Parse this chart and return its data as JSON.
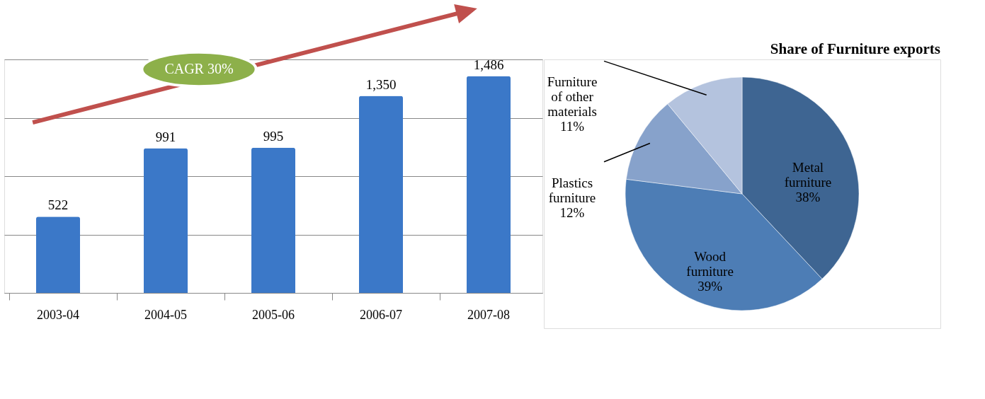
{
  "chart_data": [
    {
      "type": "bar",
      "categories": [
        "2003-04",
        "2004-05",
        "2005-06",
        "2006-07",
        "2007-08"
      ],
      "values": [
        522,
        991,
        995,
        1350,
        1486
      ],
      "value_labels": [
        "522",
        "991",
        "995",
        "1,350",
        "1,486"
      ],
      "data_labels": true,
      "color": "#3b78c8",
      "ylim": [
        0,
        1600
      ],
      "yticks": [
        {
          "value": 0,
          "label": null
        },
        {
          "value": 400,
          "label": null
        },
        {
          "value": 800,
          "label": null
        },
        {
          "value": 1200,
          "label": null
        },
        {
          "value": 1600,
          "label": null
        }
      ],
      "grid": "y",
      "tick_labels": "x",
      "annotations": [
        "CAGR 30%"
      ]
    },
    {
      "type": "pie",
      "title": "Share of Furniture exports",
      "categories": [
        "Metal furniture",
        "Wood furniture",
        "Plastics furniture",
        "Furniture of other materials"
      ],
      "values": [
        38,
        39,
        12,
        11
      ],
      "value_labels": [
        "38%",
        "39%",
        "12%",
        "11%"
      ],
      "colors": [
        "#3e6592",
        "#4d7db5",
        "#87a2cb",
        "#b4c3de"
      ]
    }
  ]
}
